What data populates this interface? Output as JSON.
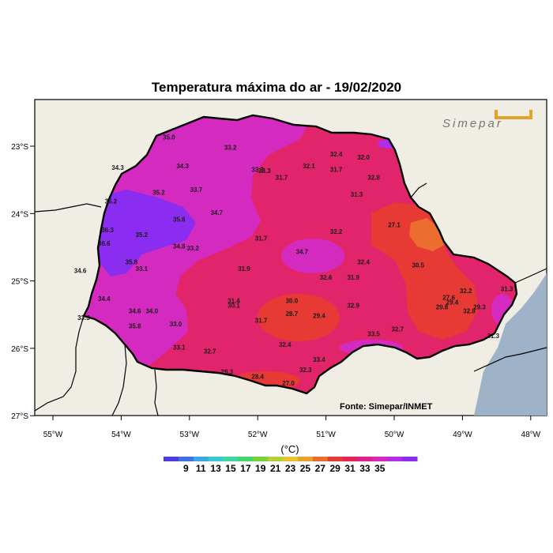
{
  "title": "Temperatura máxima do ar - 19/02/2020",
  "source": "Fonte: Simepar/INMET",
  "logo": {
    "text": "Simepar",
    "color": "#e2a32b"
  },
  "unit_label": "(°C)",
  "map": {
    "lon_range": [
      -55.3,
      -47.7
    ],
    "lat_range": [
      -27.0,
      -22.3
    ],
    "ocean_color": "#9fb3c8",
    "land_color": "#efede4",
    "x_ticks": [
      "55°W",
      "54°W",
      "53°W",
      "52°W",
      "51°W",
      "50°W",
      "49°W",
      "48°W"
    ],
    "y_ticks": [
      "23°S",
      "24°S",
      "25°S",
      "26°S",
      "27°S"
    ]
  },
  "colorbar": {
    "colors": [
      "#4a3cdd",
      "#3f6fe0",
      "#3aa6e4",
      "#39c9d6",
      "#3cd7a5",
      "#45d36b",
      "#79d140",
      "#b5cf36",
      "#e6c531",
      "#eba132",
      "#ec6e2f",
      "#e83a35",
      "#e22459",
      "#e0208c",
      "#d52ac0",
      "#b12de8",
      "#8a2df0"
    ],
    "labels": [
      "9",
      "11",
      "13",
      "15",
      "17",
      "19",
      "21",
      "23",
      "25",
      "27",
      "29",
      "31",
      "33",
      "35"
    ]
  },
  "stations": [
    {
      "lon": -53.3,
      "lat": -22.9,
      "value": "35.0"
    },
    {
      "lon": -52.4,
      "lat": -23.05,
      "value": "33.2"
    },
    {
      "lon": -50.85,
      "lat": -23.15,
      "value": "32.4"
    },
    {
      "lon": -50.45,
      "lat": -23.2,
      "value": "32.0"
    },
    {
      "lon": -54.05,
      "lat": -23.35,
      "value": "34.3"
    },
    {
      "lon": -53.1,
      "lat": -23.33,
      "value": "34.3"
    },
    {
      "lon": -52.0,
      "lat": -23.38,
      "value": "33.3"
    },
    {
      "lon": -51.9,
      "lat": -23.4,
      "value": "33.3"
    },
    {
      "lon": -51.25,
      "lat": -23.33,
      "value": "32.1"
    },
    {
      "lon": -51.65,
      "lat": -23.5,
      "value": "31.7"
    },
    {
      "lon": -50.85,
      "lat": -23.38,
      "value": "31.7"
    },
    {
      "lon": -50.3,
      "lat": -23.5,
      "value": "32.8"
    },
    {
      "lon": -52.9,
      "lat": -23.68,
      "value": "33.7"
    },
    {
      "lon": -53.45,
      "lat": -23.72,
      "value": "35.2"
    },
    {
      "lon": -50.55,
      "lat": -23.75,
      "value": "31.3"
    },
    {
      "lon": -54.15,
      "lat": -23.85,
      "value": "36.2"
    },
    {
      "lon": -52.6,
      "lat": -24.02,
      "value": "34.7"
    },
    {
      "lon": -53.15,
      "lat": -24.12,
      "value": "35.6"
    },
    {
      "lon": -50.0,
      "lat": -24.2,
      "value": "27.1"
    },
    {
      "lon": -54.2,
      "lat": -24.28,
      "value": "36.3"
    },
    {
      "lon": -53.7,
      "lat": -24.35,
      "value": "35.2"
    },
    {
      "lon": -50.85,
      "lat": -24.3,
      "value": "32.2"
    },
    {
      "lon": -51.95,
      "lat": -24.4,
      "value": "31.7"
    },
    {
      "lon": -54.25,
      "lat": -24.48,
      "value": "36.6"
    },
    {
      "lon": -53.15,
      "lat": -24.52,
      "value": "34.8"
    },
    {
      "lon": -52.95,
      "lat": -24.55,
      "value": "33.2"
    },
    {
      "lon": -51.35,
      "lat": -24.6,
      "value": "34.7"
    },
    {
      "lon": -53.85,
      "lat": -24.75,
      "value": "35.8"
    },
    {
      "lon": -50.45,
      "lat": -24.75,
      "value": "32.4"
    },
    {
      "lon": -49.65,
      "lat": -24.8,
      "value": "30.5"
    },
    {
      "lon": -54.6,
      "lat": -24.88,
      "value": "34.6"
    },
    {
      "lon": -53.7,
      "lat": -24.85,
      "value": "33.1"
    },
    {
      "lon": -52.2,
      "lat": -24.85,
      "value": "31.9"
    },
    {
      "lon": -51.0,
      "lat": -24.98,
      "value": "32.6"
    },
    {
      "lon": -50.6,
      "lat": -24.98,
      "value": "31.9"
    },
    {
      "lon": -48.95,
      "lat": -25.18,
      "value": "32.2"
    },
    {
      "lon": -48.35,
      "lat": -25.15,
      "value": "31.3"
    },
    {
      "lon": -54.25,
      "lat": -25.3,
      "value": "34.4"
    },
    {
      "lon": -52.35,
      "lat": -25.33,
      "value": "31.4"
    },
    {
      "lon": -52.35,
      "lat": -25.4,
      "value": "30.1"
    },
    {
      "lon": -51.5,
      "lat": -25.33,
      "value": "30.0"
    },
    {
      "lon": -49.2,
      "lat": -25.28,
      "value": "27.6"
    },
    {
      "lon": -49.15,
      "lat": -25.35,
      "value": "29.4"
    },
    {
      "lon": -48.75,
      "lat": -25.42,
      "value": "29.3"
    },
    {
      "lon": -50.6,
      "lat": -25.4,
      "value": "32.9"
    },
    {
      "lon": -49.3,
      "lat": -25.42,
      "value": "29.8"
    },
    {
      "lon": -48.9,
      "lat": -25.48,
      "value": "32.8"
    },
    {
      "lon": -53.8,
      "lat": -25.48,
      "value": "34.6"
    },
    {
      "lon": -53.55,
      "lat": -25.48,
      "value": "34.0"
    },
    {
      "lon": -51.5,
      "lat": -25.52,
      "value": "28.7"
    },
    {
      "lon": -51.1,
      "lat": -25.55,
      "value": "29.4"
    },
    {
      "lon": -54.55,
      "lat": -25.58,
      "value": "33.3"
    },
    {
      "lon": -53.8,
      "lat": -25.7,
      "value": "35.8"
    },
    {
      "lon": -53.2,
      "lat": -25.67,
      "value": "33.0"
    },
    {
      "lon": -51.95,
      "lat": -25.62,
      "value": "31.7"
    },
    {
      "lon": -49.95,
      "lat": -25.75,
      "value": "32.7"
    },
    {
      "lon": -50.3,
      "lat": -25.82,
      "value": "33.5"
    },
    {
      "lon": -48.55,
      "lat": -25.85,
      "value": "31.3"
    },
    {
      "lon": -51.6,
      "lat": -25.98,
      "value": "32.4"
    },
    {
      "lon": -53.15,
      "lat": -26.02,
      "value": "33.1"
    },
    {
      "lon": -52.7,
      "lat": -26.08,
      "value": "32.7"
    },
    {
      "lon": -51.1,
      "lat": -26.2,
      "value": "33.4"
    },
    {
      "lon": -51.3,
      "lat": -26.35,
      "value": "32.3"
    },
    {
      "lon": -52.45,
      "lat": -26.38,
      "value": "29.3"
    },
    {
      "lon": -52.0,
      "lat": -26.45,
      "value": "28.4"
    },
    {
      "lon": -51.55,
      "lat": -26.55,
      "value": "27.0"
    }
  ]
}
